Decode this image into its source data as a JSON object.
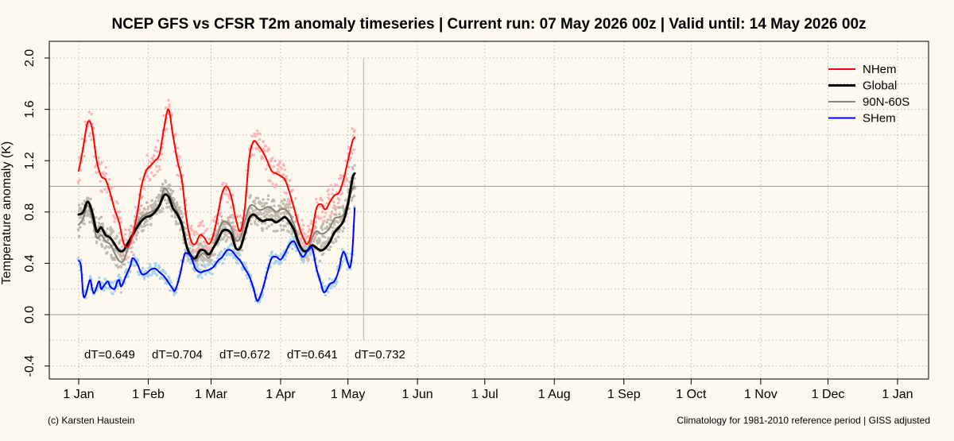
{
  "chart_data": {
    "type": "line",
    "title": "NCEP GFS vs CFSR T2m anomaly timeseries | Current run: 07 May 2026 00z | Valid until: 14 May 2026 00z",
    "ylabel": "Temperature anomaly (K)",
    "xlabel": "",
    "ylim": [
      -0.45,
      2.0
    ],
    "y_ticks": [
      "-0.4",
      "0.0",
      "0.4",
      "0.8",
      "1.2",
      "1.6",
      "2.0"
    ],
    "x_unit": "day of year",
    "x_ticks": [
      {
        "label": "1 Jan",
        "x": 1
      },
      {
        "label": "1 Feb",
        "x": 32
      },
      {
        "label": "1 Mar",
        "x": 60
      },
      {
        "label": "1 Apr",
        "x": 91
      },
      {
        "label": "1 May",
        "x": 121
      },
      {
        "label": "1 Jun",
        "x": 152
      },
      {
        "label": "1 Jul",
        "x": 182
      },
      {
        "label": "1 Aug",
        "x": 213
      },
      {
        "label": "1 Sep",
        "x": 244
      },
      {
        "label": "1 Oct",
        "x": 274
      },
      {
        "label": "1 Nov",
        "x": 305
      },
      {
        "label": "1 Dec",
        "x": 335
      },
      {
        "label": "1 Jan",
        "x": 366
      }
    ],
    "reference_lines": {
      "horizontal": [
        0.0,
        1.0
      ],
      "vertical_day": 128
    },
    "grid": true,
    "legend_position": "top-right",
    "series": [
      {
        "name": "NHem",
        "color": "#ff0000",
        "width": 2,
        "point_color": "#ffb3b8",
        "points": [
          [
            1,
            1.12
          ],
          [
            3,
            1.3
          ],
          [
            5,
            1.5
          ],
          [
            7,
            1.45
          ],
          [
            9,
            1.2
          ],
          [
            11,
            1.08
          ],
          [
            13,
            1.05
          ],
          [
            15,
            0.95
          ],
          [
            17,
            0.82
          ],
          [
            19,
            0.72
          ],
          [
            21,
            0.56
          ],
          [
            23,
            0.53
          ],
          [
            25,
            0.62
          ],
          [
            27,
            0.78
          ],
          [
            29,
            1.0
          ],
          [
            31,
            1.12
          ],
          [
            33,
            1.16
          ],
          [
            35,
            1.2
          ],
          [
            37,
            1.25
          ],
          [
            39,
            1.45
          ],
          [
            41,
            1.6
          ],
          [
            43,
            1.4
          ],
          [
            45,
            1.2
          ],
          [
            47,
            1.05
          ],
          [
            49,
            0.75
          ],
          [
            51,
            0.58
          ],
          [
            53,
            0.55
          ],
          [
            55,
            0.62
          ],
          [
            57,
            0.6
          ],
          [
            59,
            0.55
          ],
          [
            61,
            0.62
          ],
          [
            63,
            0.78
          ],
          [
            65,
            0.95
          ],
          [
            67,
            1.0
          ],
          [
            69,
            0.92
          ],
          [
            71,
            0.75
          ],
          [
            73,
            0.65
          ],
          [
            75,
            0.82
          ],
          [
            77,
            1.22
          ],
          [
            79,
            1.35
          ],
          [
            81,
            1.32
          ],
          [
            83,
            1.27
          ],
          [
            85,
            1.2
          ],
          [
            87,
            1.12
          ],
          [
            89,
            1.1
          ],
          [
            91,
            1.08
          ],
          [
            93,
            1.05
          ],
          [
            95,
            0.95
          ],
          [
            97,
            0.83
          ],
          [
            99,
            0.7
          ],
          [
            101,
            0.6
          ],
          [
            103,
            0.55
          ],
          [
            105,
            0.65
          ],
          [
            107,
            0.83
          ],
          [
            109,
            0.86
          ],
          [
            111,
            0.82
          ],
          [
            113,
            0.88
          ],
          [
            115,
            0.93
          ],
          [
            117,
            0.95
          ],
          [
            119,
            1.05
          ],
          [
            121,
            1.2
          ],
          [
            123,
            1.35
          ],
          [
            124,
            1.38
          ]
        ]
      },
      {
        "name": "Global",
        "color": "#000000",
        "width": 3,
        "point_color": "#c4bcb0",
        "points": [
          [
            1,
            0.78
          ],
          [
            3,
            0.8
          ],
          [
            5,
            0.88
          ],
          [
            7,
            0.8
          ],
          [
            9,
            0.65
          ],
          [
            11,
            0.68
          ],
          [
            13,
            0.62
          ],
          [
            15,
            0.6
          ],
          [
            17,
            0.55
          ],
          [
            19,
            0.5
          ],
          [
            21,
            0.5
          ],
          [
            23,
            0.56
          ],
          [
            25,
            0.62
          ],
          [
            27,
            0.68
          ],
          [
            29,
            0.73
          ],
          [
            31,
            0.76
          ],
          [
            33,
            0.77
          ],
          [
            35,
            0.8
          ],
          [
            37,
            0.85
          ],
          [
            39,
            0.93
          ],
          [
            41,
            0.92
          ],
          [
            43,
            0.83
          ],
          [
            45,
            0.78
          ],
          [
            47,
            0.7
          ],
          [
            49,
            0.54
          ],
          [
            51,
            0.46
          ],
          [
            53,
            0.44
          ],
          [
            55,
            0.5
          ],
          [
            57,
            0.5
          ],
          [
            59,
            0.47
          ],
          [
            61,
            0.52
          ],
          [
            63,
            0.58
          ],
          [
            65,
            0.65
          ],
          [
            67,
            0.66
          ],
          [
            69,
            0.63
          ],
          [
            71,
            0.52
          ],
          [
            73,
            0.52
          ],
          [
            75,
            0.63
          ],
          [
            77,
            0.75
          ],
          [
            79,
            0.78
          ],
          [
            81,
            0.75
          ],
          [
            83,
            0.73
          ],
          [
            85,
            0.74
          ],
          [
            87,
            0.74
          ],
          [
            89,
            0.72
          ],
          [
            91,
            0.74
          ],
          [
            93,
            0.76
          ],
          [
            95,
            0.72
          ],
          [
            97,
            0.66
          ],
          [
            99,
            0.56
          ],
          [
            101,
            0.5
          ],
          [
            103,
            0.5
          ],
          [
            105,
            0.54
          ],
          [
            107,
            0.52
          ],
          [
            109,
            0.5
          ],
          [
            111,
            0.52
          ],
          [
            113,
            0.57
          ],
          [
            115,
            0.64
          ],
          [
            117,
            0.68
          ],
          [
            119,
            0.73
          ],
          [
            121,
            0.86
          ],
          [
            123,
            1.06
          ],
          [
            124,
            1.1
          ]
        ]
      },
      {
        "name": "90N-60S",
        "color": "#8b8378",
        "width": 2,
        "point_color": "#bfb9ad",
        "points": [
          [
            1,
            0.7
          ],
          [
            3,
            0.75
          ],
          [
            5,
            0.85
          ],
          [
            7,
            0.75
          ],
          [
            9,
            0.6
          ],
          [
            11,
            0.62
          ],
          [
            13,
            0.57
          ],
          [
            15,
            0.55
          ],
          [
            17,
            0.48
          ],
          [
            19,
            0.42
          ],
          [
            21,
            0.42
          ],
          [
            23,
            0.52
          ],
          [
            25,
            0.62
          ],
          [
            27,
            0.7
          ],
          [
            29,
            0.76
          ],
          [
            31,
            0.78
          ],
          [
            33,
            0.8
          ],
          [
            35,
            0.82
          ],
          [
            37,
            0.86
          ],
          [
            39,
            0.98
          ],
          [
            41,
            0.95
          ],
          [
            43,
            0.88
          ],
          [
            45,
            0.8
          ],
          [
            47,
            0.72
          ],
          [
            49,
            0.55
          ],
          [
            51,
            0.45
          ],
          [
            53,
            0.42
          ],
          [
            55,
            0.46
          ],
          [
            57,
            0.48
          ],
          [
            59,
            0.44
          ],
          [
            61,
            0.52
          ],
          [
            63,
            0.63
          ],
          [
            65,
            0.72
          ],
          [
            67,
            0.72
          ],
          [
            69,
            0.68
          ],
          [
            71,
            0.58
          ],
          [
            73,
            0.6
          ],
          [
            75,
            0.72
          ],
          [
            77,
            0.84
          ],
          [
            79,
            0.85
          ],
          [
            81,
            0.82
          ],
          [
            83,
            0.82
          ],
          [
            85,
            0.84
          ],
          [
            87,
            0.83
          ],
          [
            89,
            0.8
          ],
          [
            91,
            0.82
          ],
          [
            93,
            0.82
          ],
          [
            95,
            0.78
          ],
          [
            97,
            0.7
          ],
          [
            99,
            0.58
          ],
          [
            101,
            0.5
          ],
          [
            103,
            0.5
          ],
          [
            105,
            0.6
          ],
          [
            107,
            0.65
          ],
          [
            109,
            0.63
          ],
          [
            111,
            0.64
          ],
          [
            113,
            0.68
          ],
          [
            115,
            0.75
          ],
          [
            117,
            0.76
          ],
          [
            119,
            0.78
          ],
          [
            121,
            0.88
          ],
          [
            123,
            0.98
          ],
          [
            124,
            1.0
          ]
        ]
      },
      {
        "name": "SHem",
        "color": "#0000ff",
        "width": 2,
        "point_color": "#a6d4ef",
        "points": [
          [
            1,
            0.42
          ],
          [
            2,
            0.38
          ],
          [
            3,
            0.16
          ],
          [
            4,
            0.15
          ],
          [
            6,
            0.27
          ],
          [
            7,
            0.2
          ],
          [
            8,
            0.17
          ],
          [
            10,
            0.26
          ],
          [
            11,
            0.2
          ],
          [
            12,
            0.22
          ],
          [
            14,
            0.26
          ],
          [
            15,
            0.22
          ],
          [
            17,
            0.2
          ],
          [
            18,
            0.25
          ],
          [
            19,
            0.27
          ],
          [
            20,
            0.22
          ],
          [
            22,
            0.3
          ],
          [
            24,
            0.38
          ],
          [
            25,
            0.44
          ],
          [
            27,
            0.4
          ],
          [
            29,
            0.32
          ],
          [
            31,
            0.32
          ],
          [
            33,
            0.35
          ],
          [
            35,
            0.36
          ],
          [
            37,
            0.33
          ],
          [
            39,
            0.3
          ],
          [
            41,
            0.25
          ],
          [
            43,
            0.2
          ],
          [
            44,
            0.19
          ],
          [
            46,
            0.3
          ],
          [
            48,
            0.46
          ],
          [
            49,
            0.48
          ],
          [
            51,
            0.45
          ],
          [
            53,
            0.36
          ],
          [
            55,
            0.33
          ],
          [
            57,
            0.34
          ],
          [
            59,
            0.35
          ],
          [
            61,
            0.37
          ],
          [
            63,
            0.42
          ],
          [
            65,
            0.45
          ],
          [
            67,
            0.5
          ],
          [
            69,
            0.5
          ],
          [
            71,
            0.46
          ],
          [
            73,
            0.42
          ],
          [
            75,
            0.36
          ],
          [
            77,
            0.3
          ],
          [
            79,
            0.2
          ],
          [
            80,
            0.13
          ],
          [
            81,
            0.11
          ],
          [
            83,
            0.2
          ],
          [
            85,
            0.33
          ],
          [
            87,
            0.44
          ],
          [
            89,
            0.45
          ],
          [
            91,
            0.43
          ],
          [
            93,
            0.48
          ],
          [
            95,
            0.55
          ],
          [
            97,
            0.57
          ],
          [
            99,
            0.5
          ],
          [
            101,
            0.45
          ],
          [
            103,
            0.5
          ],
          [
            105,
            0.52
          ],
          [
            107,
            0.36
          ],
          [
            109,
            0.24
          ],
          [
            110,
            0.18
          ],
          [
            111,
            0.18
          ],
          [
            113,
            0.24
          ],
          [
            115,
            0.26
          ],
          [
            117,
            0.35
          ],
          [
            118,
            0.44
          ],
          [
            119,
            0.49
          ],
          [
            120,
            0.46
          ],
          [
            121,
            0.4
          ],
          [
            122,
            0.37
          ],
          [
            123,
            0.5
          ],
          [
            124,
            0.83
          ]
        ]
      }
    ],
    "annotations": [
      "dT=0.649",
      "dT=0.704",
      "dT=0.672",
      "dT=0.641",
      "dT=0.732"
    ]
  },
  "footer": {
    "left": "(c) Karsten Haustein",
    "right": "Climatology for 1981-2010 reference period | GISS adjusted"
  }
}
